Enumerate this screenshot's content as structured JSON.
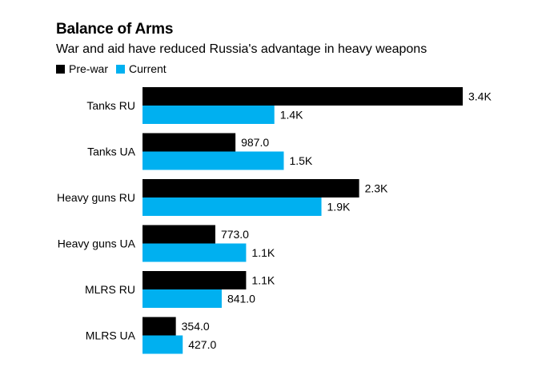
{
  "colors": {
    "pre_war": "#000000",
    "current": "#00b0f0"
  },
  "chart_data": {
    "type": "bar",
    "orientation": "horizontal",
    "title": "Balance of Arms",
    "subtitle": "War and aid have reduced Russia's advantage in heavy weapons",
    "legend_position": "top-left",
    "grid": false,
    "xlim": [
      0,
      3400
    ],
    "categories": [
      "Tanks RU",
      "Tanks UA",
      "Heavy guns RU",
      "Heavy guns UA",
      "MLRS RU",
      "MLRS UA"
    ],
    "series": [
      {
        "name": "Pre-war",
        "values": [
          3400,
          987,
          2300,
          773,
          1100,
          354
        ],
        "labels": [
          "3.4K",
          "987.0",
          "2.3K",
          "773.0",
          "1.1K",
          "354.0"
        ]
      },
      {
        "name": "Current",
        "values": [
          1400,
          1500,
          1900,
          1100,
          841,
          427
        ],
        "labels": [
          "1.4K",
          "1.5K",
          "1.9K",
          "1.1K",
          "841.0",
          "427.0"
        ]
      }
    ]
  }
}
